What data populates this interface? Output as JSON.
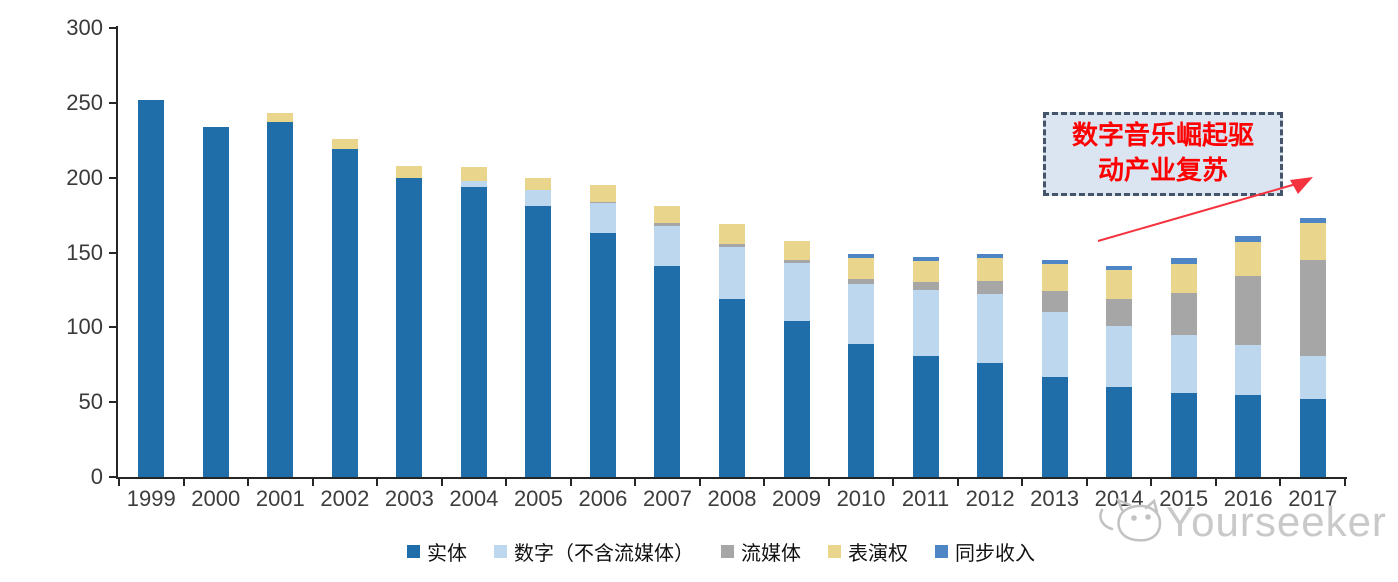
{
  "chart_data": {
    "type": "bar",
    "stacked": true,
    "title": "",
    "xlabel": "",
    "ylabel": "",
    "ylim": [
      0,
      300
    ],
    "yticks": [
      0,
      50,
      100,
      150,
      200,
      250,
      300
    ],
    "grid": false,
    "legend_position": "bottom",
    "categories": [
      "1999",
      "2000",
      "2001",
      "2002",
      "2003",
      "2004",
      "2005",
      "2006",
      "2007",
      "2008",
      "2009",
      "2010",
      "2011",
      "2012",
      "2013",
      "2014",
      "2015",
      "2016",
      "2017"
    ],
    "series": [
      {
        "name": "实体",
        "color": "#1F6EA9",
        "values": [
          252,
          234,
          237,
          219,
          200,
          194,
          181,
          163,
          141,
          119,
          104,
          89,
          81,
          76,
          67,
          60,
          56,
          55,
          52
        ]
      },
      {
        "name": "数字（不含流媒体）",
        "color": "#BDD7EE",
        "values": [
          0,
          0,
          0,
          0,
          0,
          4,
          11,
          20,
          27,
          35,
          39,
          40,
          44,
          46,
          43,
          41,
          39,
          33,
          29
        ]
      },
      {
        "name": "流媒体",
        "color": "#A6A6A6",
        "values": [
          0,
          0,
          0,
          0,
          0,
          0,
          0,
          1,
          2,
          2,
          2,
          3,
          5,
          9,
          14,
          18,
          28,
          46,
          64
        ]
      },
      {
        "name": "表演权",
        "color": "#E9D68C",
        "values": [
          0,
          0,
          6,
          7,
          8,
          9,
          8,
          11,
          11,
          13,
          13,
          14,
          14,
          15,
          18,
          19,
          19,
          23,
          25
        ]
      },
      {
        "name": "同步收入",
        "color": "#4E86C5",
        "values": [
          0,
          0,
          0,
          0,
          0,
          0,
          0,
          0,
          0,
          0,
          0,
          3,
          3,
          3,
          3,
          3,
          4,
          4,
          3
        ]
      }
    ]
  },
  "annotation": {
    "line1": "数字音乐崛起驱",
    "line2": "动产业复苏",
    "box_fill": "#DBE5F2",
    "box_border": "#44546A",
    "text_color": "#FF0000",
    "arrow_color": "#F5333F"
  },
  "watermark": {
    "text": "Yourseeker",
    "logo": "cat-logo-icon",
    "color": "#C9C9C9"
  }
}
